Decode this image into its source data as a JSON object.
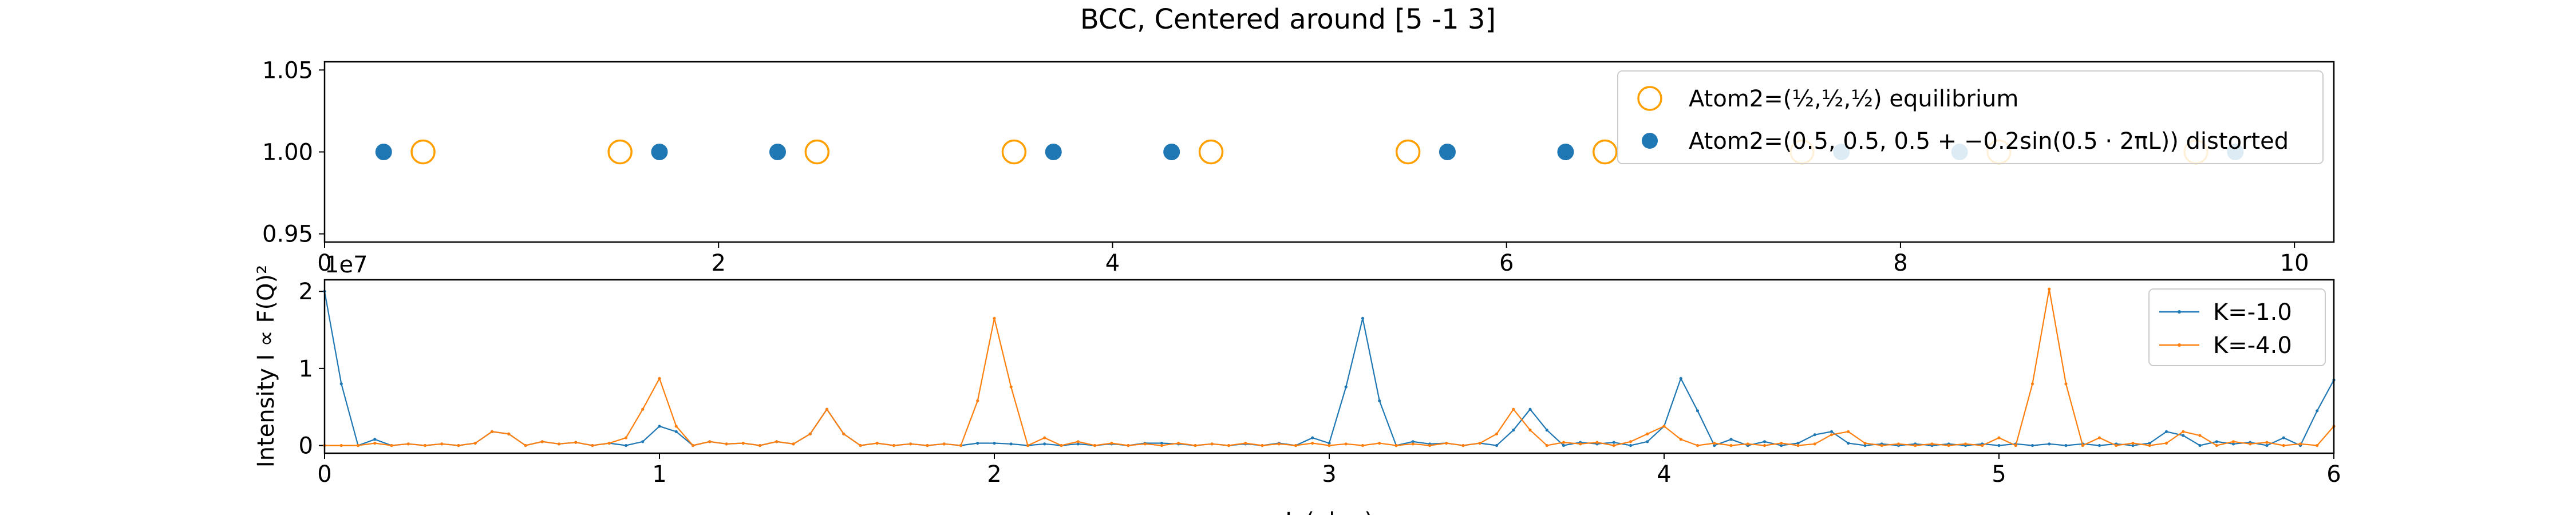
{
  "chart_data": [
    {
      "type": "scatter",
      "title": "BCC, Centered around [5 -1 3]",
      "xlim": [
        0,
        10.2
      ],
      "ylim": [
        0.945,
        1.055
      ],
      "xticks": [
        0,
        2,
        4,
        6,
        8,
        10
      ],
      "xtick_labels": [
        "0",
        "2",
        "4",
        "6",
        "8",
        "10"
      ],
      "yticks": [
        0.95,
        1.0,
        1.05
      ],
      "ytick_labels": [
        "0.95",
        "1.00",
        "1.05"
      ],
      "legend_location": "upper right",
      "series": [
        {
          "name": "Atom2=(½,½,½) equilibrium",
          "marker": "open-circle",
          "color": "#ff9f00",
          "x": [
            0.5,
            1.5,
            2.5,
            3.5,
            4.5,
            5.5,
            6.5,
            7.5,
            8.5,
            9.5
          ],
          "y": [
            1,
            1,
            1,
            1,
            1,
            1,
            1,
            1,
            1,
            1
          ]
        },
        {
          "name": "Atom2=(0.5, 0.5, 0.5 + −0.2sin(0.5 · 2πL)) distorted",
          "marker": "filled-circle",
          "color": "#1f77b4",
          "x": [
            0.3,
            1.7,
            2.3,
            3.7,
            4.3,
            5.7,
            6.3,
            7.7,
            8.3,
            9.7
          ],
          "y": [
            1,
            1,
            1,
            1,
            1,
            1,
            1,
            1,
            1,
            1
          ]
        }
      ]
    },
    {
      "type": "line",
      "title": "",
      "xlabel": "L (r.l.u.)",
      "ylabel": "Intensity I ∝ F(Q)²",
      "offset_label": "1e7",
      "xlim": [
        0,
        6
      ],
      "ylim": [
        -0.1,
        2.15
      ],
      "xticks": [
        0,
        1,
        2,
        3,
        4,
        5,
        6
      ],
      "xtick_labels": [
        "0",
        "1",
        "2",
        "3",
        "4",
        "5",
        "6"
      ],
      "yticks": [
        0,
        1,
        2
      ],
      "ytick_labels": [
        "0",
        "1",
        "2"
      ],
      "legend_location": "upper right",
      "x": [
        0,
        0.05,
        0.1,
        0.15,
        0.2,
        0.25,
        0.3,
        0.35,
        0.4,
        0.45,
        0.5,
        0.55,
        0.6,
        0.65,
        0.7,
        0.75,
        0.8,
        0.85,
        0.9,
        0.95,
        1,
        1.05,
        1.1,
        1.15,
        1.2,
        1.25,
        1.3,
        1.35,
        1.4,
        1.45,
        1.5,
        1.55,
        1.6,
        1.65,
        1.7,
        1.75,
        1.8,
        1.85,
        1.9,
        1.95,
        2,
        2.05,
        2.1,
        2.15,
        2.2,
        2.25,
        2.3,
        2.35,
        2.4,
        2.45,
        2.5,
        2.55,
        2.6,
        2.65,
        2.7,
        2.75,
        2.8,
        2.85,
        2.9,
        2.95,
        3,
        3.05,
        3.1,
        3.15,
        3.2,
        3.25,
        3.3,
        3.35,
        3.4,
        3.45,
        3.5,
        3.55,
        3.6,
        3.65,
        3.7,
        3.75,
        3.8,
        3.85,
        3.9,
        3.95,
        4,
        4.05,
        4.1,
        4.15,
        4.2,
        4.25,
        4.3,
        4.35,
        4.4,
        4.45,
        4.5,
        4.55,
        4.6,
        4.65,
        4.7,
        4.75,
        4.8,
        4.85,
        4.9,
        4.95,
        5,
        5.05,
        5.1,
        5.15,
        5.2,
        5.25,
        5.3,
        5.35,
        5.4,
        5.45,
        5.5,
        5.55,
        5.6,
        5.65,
        5.7,
        5.75,
        5.8,
        5.85,
        5.9,
        5.95,
        6
      ],
      "series": [
        {
          "name": "K=-1.0",
          "color": "#1f77b4",
          "values": [
            2.0,
            0.8,
            0.0,
            0.08,
            0.0,
            0.02,
            0.0,
            0.02,
            0.0,
            0.03,
            0.18,
            0.15,
            0.0,
            0.05,
            0.02,
            0.04,
            0.0,
            0.03,
            0.0,
            0.05,
            0.25,
            0.18,
            0.0,
            0.05,
            0.02,
            0.03,
            0.0,
            0.05,
            0.02,
            0.15,
            0.47,
            0.15,
            0.0,
            0.03,
            0.0,
            0.02,
            0.0,
            0.02,
            0.0,
            0.03,
            0.03,
            0.02,
            0.0,
            0.02,
            0.0,
            0.02,
            0.0,
            0.02,
            0.0,
            0.03,
            0.03,
            0.02,
            0.0,
            0.02,
            0.0,
            0.02,
            0.0,
            0.03,
            0.0,
            0.1,
            0.03,
            0.76,
            1.65,
            0.58,
            0.0,
            0.05,
            0.02,
            0.03,
            0.0,
            0.03,
            0.0,
            0.2,
            0.47,
            0.2,
            0.0,
            0.04,
            0.02,
            0.04,
            0.0,
            0.05,
            0.25,
            0.87,
            0.45,
            0.0,
            0.08,
            0.0,
            0.05,
            0.0,
            0.03,
            0.14,
            0.18,
            0.03,
            0.0,
            0.02,
            0.0,
            0.02,
            0.0,
            0.02,
            0.0,
            0.02,
            0.0,
            0.02,
            0.0,
            0.02,
            0.0,
            0.02,
            0.0,
            0.02,
            0.0,
            0.03,
            0.18,
            0.13,
            0.0,
            0.05,
            0.02,
            0.04,
            0.0,
            0.1,
            0.0,
            0.45,
            0.85
          ]
        },
        {
          "name": "K=-4.0",
          "color": "#ff7f0e",
          "values": [
            0.0,
            0.0,
            0.0,
            0.03,
            0.0,
            0.02,
            0.0,
            0.02,
            0.0,
            0.03,
            0.18,
            0.15,
            0.0,
            0.05,
            0.02,
            0.04,
            0.0,
            0.03,
            0.1,
            0.47,
            0.87,
            0.25,
            0.0,
            0.05,
            0.02,
            0.03,
            0.0,
            0.05,
            0.02,
            0.15,
            0.47,
            0.15,
            0.0,
            0.03,
            0.0,
            0.02,
            0.0,
            0.02,
            0.0,
            0.58,
            1.65,
            0.76,
            0.0,
            0.1,
            0.0,
            0.05,
            0.0,
            0.03,
            0.0,
            0.02,
            0.0,
            0.03,
            0.0,
            0.02,
            0.0,
            0.03,
            0.0,
            0.02,
            0.0,
            0.03,
            0.0,
            0.02,
            0.0,
            0.03,
            0.0,
            0.02,
            0.0,
            0.03,
            0.0,
            0.03,
            0.15,
            0.47,
            0.2,
            0.0,
            0.04,
            0.02,
            0.04,
            0.0,
            0.05,
            0.15,
            0.25,
            0.08,
            0.0,
            0.03,
            0.0,
            0.02,
            0.0,
            0.03,
            0.0,
            0.02,
            0.14,
            0.18,
            0.03,
            0.0,
            0.02,
            0.0,
            0.02,
            0.0,
            0.02,
            0.0,
            0.1,
            0.0,
            0.8,
            2.03,
            0.8,
            0.0,
            0.1,
            0.0,
            0.03,
            0.0,
            0.03,
            0.18,
            0.13,
            0.0,
            0.05,
            0.02,
            0.04,
            0.0,
            0.02,
            0.0,
            0.25
          ]
        }
      ]
    }
  ]
}
